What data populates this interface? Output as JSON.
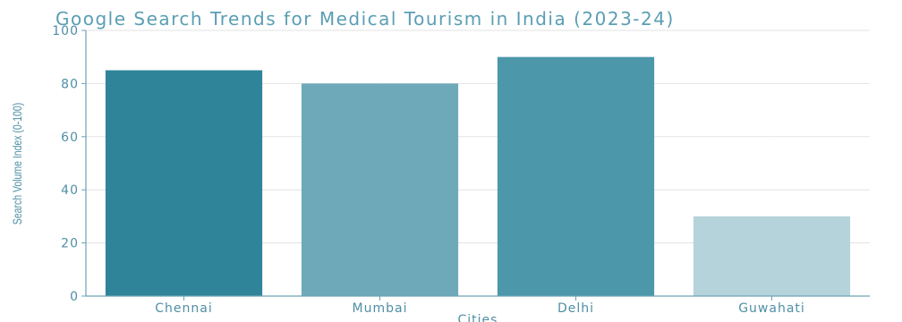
{
  "chart_data": {
    "type": "bar",
    "title": "Google Search Trends for Medical Tourism in India (2023-24)",
    "xlabel": "Cities",
    "ylabel": "Search Volume Index (0-100)",
    "categories": [
      "Chennai",
      "Mumbai",
      "Delhi",
      "Guwahati"
    ],
    "values": [
      85,
      80,
      90,
      30
    ],
    "colors": [
      "#2f8499",
      "#6ea9ba",
      "#4d97ab",
      "#b5d3da"
    ],
    "ylim": [
      0,
      100
    ],
    "yticks": [
      0,
      20,
      40,
      60,
      80,
      100
    ],
    "grid": true,
    "legend": "none"
  }
}
